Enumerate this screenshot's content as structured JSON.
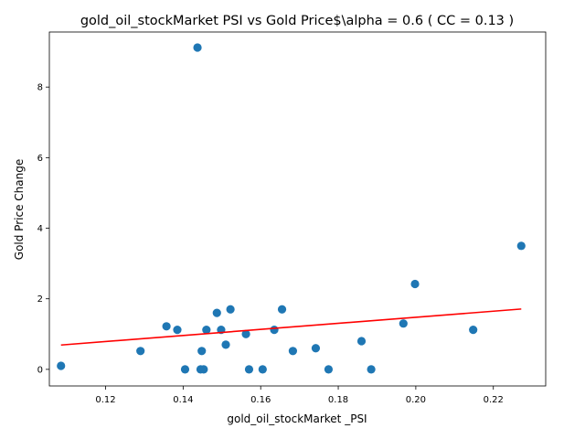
{
  "chart_data": {
    "type": "scatter",
    "title": "gold_oil_stockMarket  PSI vs Gold Price$\\alpha = 0.6 ( CC = 0.13 )",
    "xlabel": "gold_oil_stockMarket _PSI",
    "ylabel": "Gold Price Change",
    "xlim": [
      0.1055,
      0.2335
    ],
    "ylim": [
      -0.47,
      9.56
    ],
    "xticks": [
      0.12,
      0.14,
      0.16,
      0.18,
      0.2,
      0.22
    ],
    "xtick_labels": [
      "0.12",
      "0.14",
      "0.16",
      "0.18",
      "0.20",
      "0.22"
    ],
    "yticks": [
      0,
      2,
      4,
      6,
      8
    ],
    "ytick_labels": [
      "0",
      "2",
      "4",
      "6",
      "8"
    ],
    "grid": false,
    "point_color": "#1f77b4",
    "fit_color": "#ff0000",
    "points": [
      {
        "x": 0.1085,
        "y": 0.1
      },
      {
        "x": 0.129,
        "y": 0.52
      },
      {
        "x": 0.1357,
        "y": 1.22
      },
      {
        "x": 0.1385,
        "y": 1.12
      },
      {
        "x": 0.1405,
        "y": 0.0
      },
      {
        "x": 0.1437,
        "y": 9.12
      },
      {
        "x": 0.1445,
        "y": 0.0
      },
      {
        "x": 0.1448,
        "y": 0.52
      },
      {
        "x": 0.1453,
        "y": 0.0
      },
      {
        "x": 0.146,
        "y": 1.12
      },
      {
        "x": 0.1487,
        "y": 1.6
      },
      {
        "x": 0.1498,
        "y": 1.12
      },
      {
        "x": 0.151,
        "y": 0.7
      },
      {
        "x": 0.1522,
        "y": 1.7
      },
      {
        "x": 0.1562,
        "y": 1.0
      },
      {
        "x": 0.157,
        "y": 0.0
      },
      {
        "x": 0.1605,
        "y": 0.0
      },
      {
        "x": 0.1635,
        "y": 1.12
      },
      {
        "x": 0.1655,
        "y": 1.7
      },
      {
        "x": 0.1683,
        "y": 0.52
      },
      {
        "x": 0.1742,
        "y": 0.6
      },
      {
        "x": 0.1775,
        "y": 0.0
      },
      {
        "x": 0.186,
        "y": 0.8
      },
      {
        "x": 0.1885,
        "y": 0.0
      },
      {
        "x": 0.1968,
        "y": 1.3
      },
      {
        "x": 0.1998,
        "y": 2.42
      },
      {
        "x": 0.2148,
        "y": 1.12
      },
      {
        "x": 0.2272,
        "y": 3.5
      }
    ],
    "fit_line": {
      "x": [
        0.1085,
        0.2272
      ],
      "y": [
        0.69,
        1.71
      ]
    }
  }
}
